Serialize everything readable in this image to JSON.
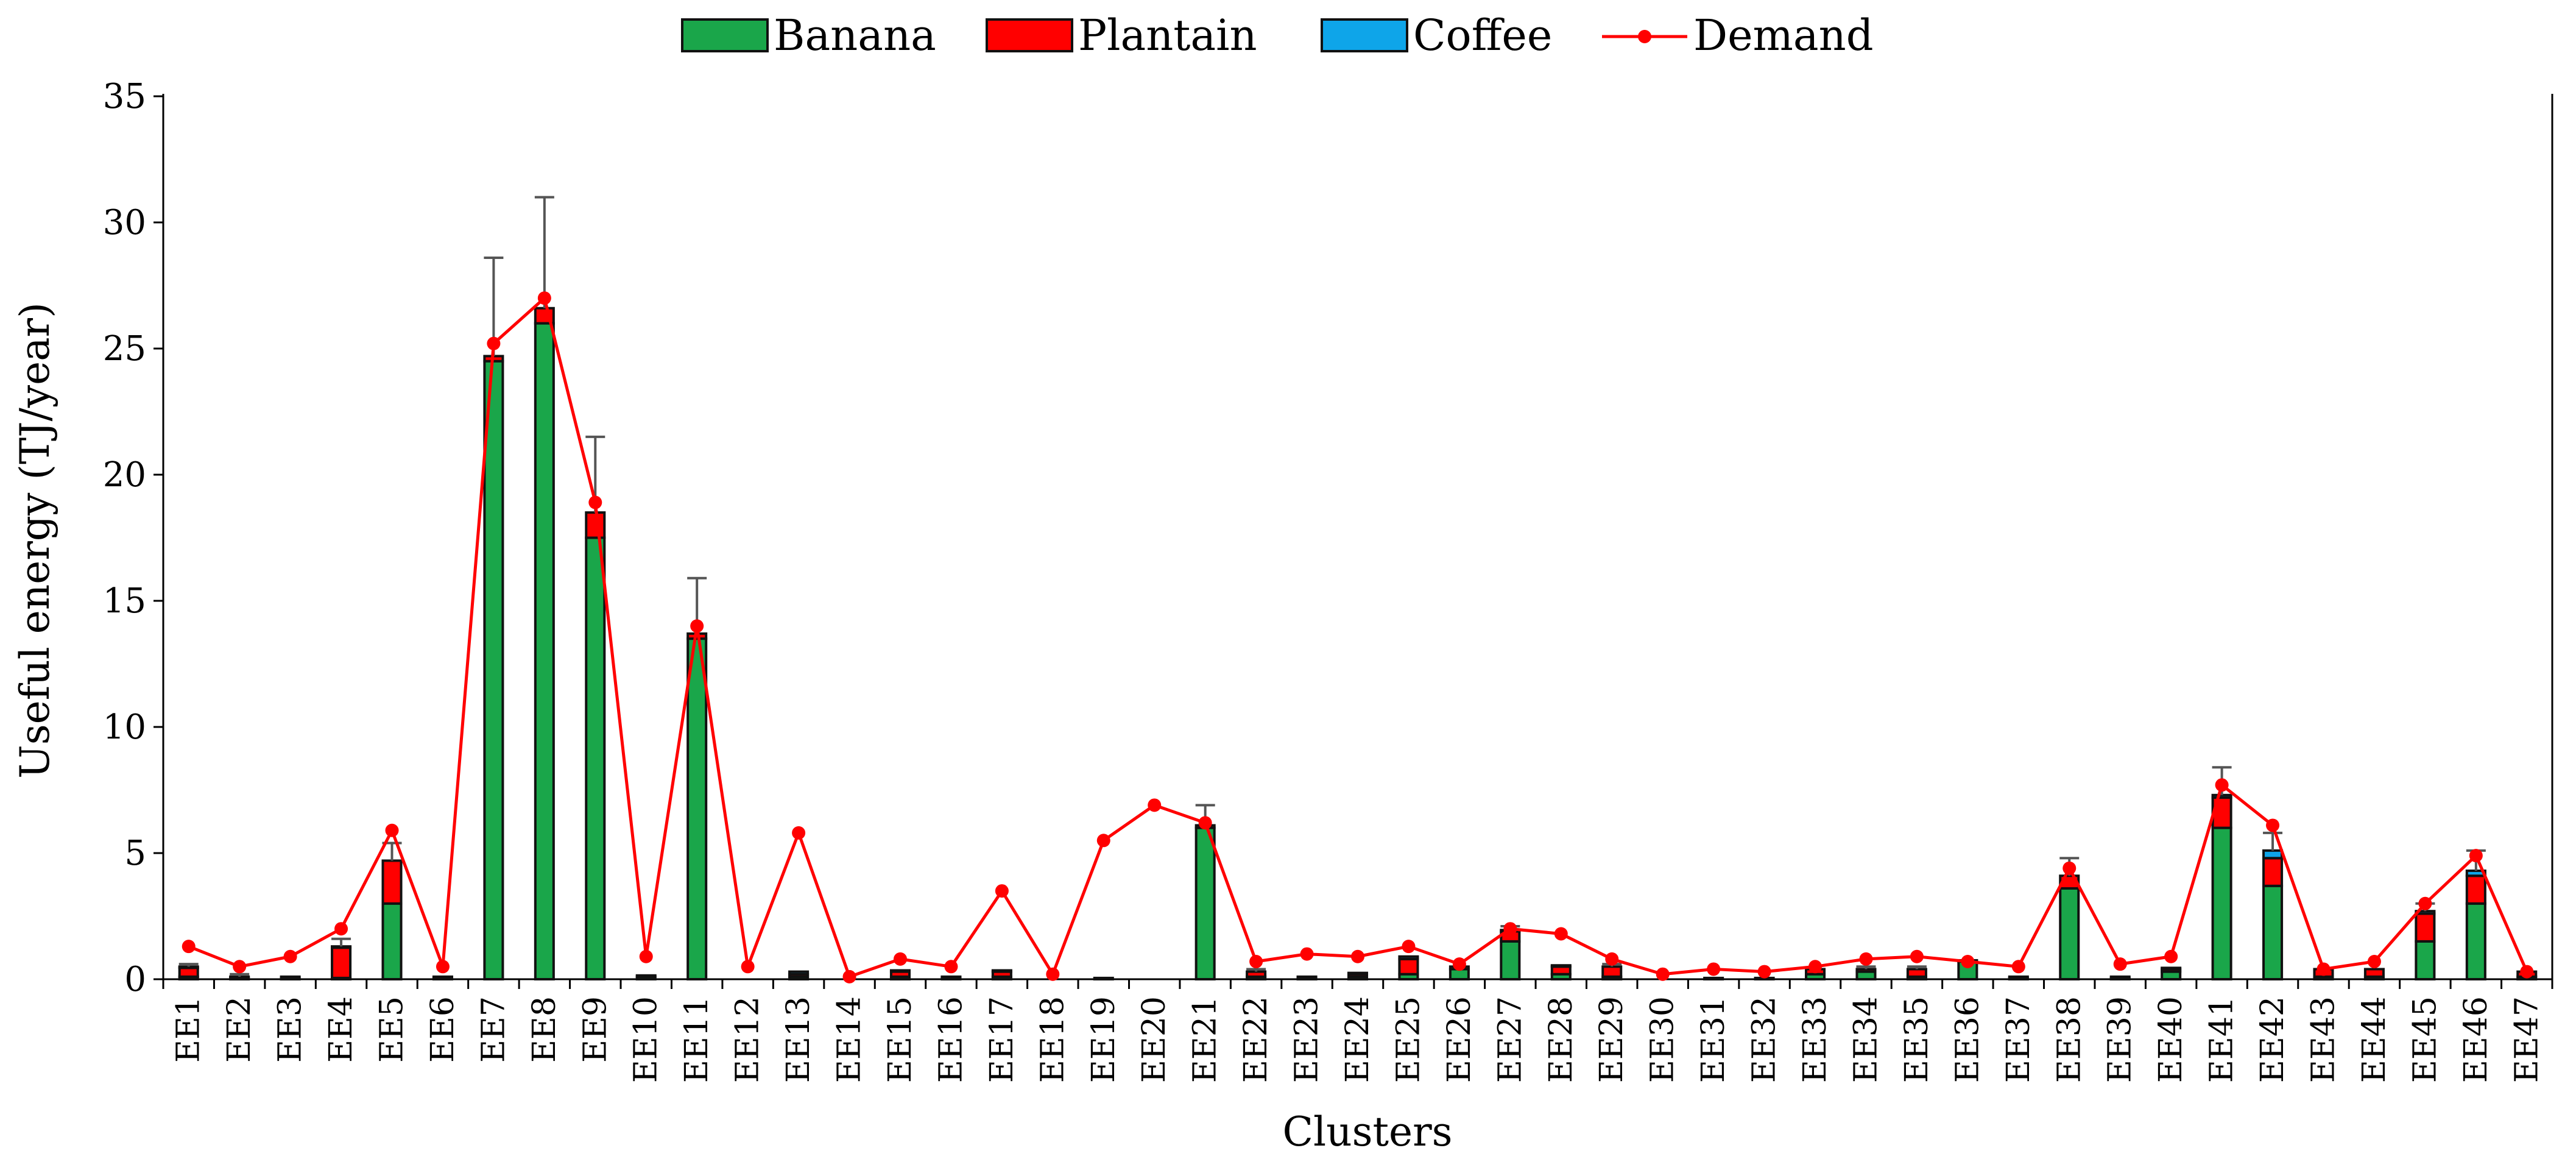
{
  "chart_data": {
    "type": "bar",
    "stacked": true,
    "xlabel": "Clusters",
    "ylabel": "Useful energy (TJ/year)",
    "ylim": [
      0,
      35
    ],
    "yticks": [
      0,
      5,
      10,
      15,
      20,
      25,
      30,
      35
    ],
    "grid": false,
    "legend_position": "top-center",
    "categories": [
      "EE1",
      "EE2",
      "EE3",
      "EE4",
      "EE5",
      "EE6",
      "EE7",
      "EE8",
      "EE9",
      "EE10",
      "EE11",
      "EE12",
      "EE13",
      "EE14",
      "EE15",
      "EE16",
      "EE17",
      "EE18",
      "EE19",
      "EE20",
      "EE21",
      "EE22",
      "EE23",
      "EE24",
      "EE25",
      "EE26",
      "EE27",
      "EE28",
      "EE29",
      "EE30",
      "EE31",
      "EE32",
      "EE33",
      "EE34",
      "EE35",
      "EE36",
      "EE37",
      "EE38",
      "EE39",
      "EE40",
      "EE41",
      "EE42",
      "EE43",
      "EE44",
      "EE45",
      "EE46",
      "EE47"
    ],
    "series": [
      {
        "name": "Banana",
        "type": "bar",
        "color": "#1aa64a",
        "values": [
          0.1,
          0.05,
          0.05,
          0.05,
          3.0,
          0.05,
          24.5,
          26.0,
          17.5,
          0.1,
          13.5,
          0.0,
          0.1,
          0.0,
          0.1,
          0.05,
          0.1,
          0.0,
          0.05,
          0.0,
          6.0,
          0.1,
          0.05,
          0.1,
          0.2,
          0.4,
          1.5,
          0.2,
          0.1,
          0.0,
          0.05,
          0.05,
          0.2,
          0.3,
          0.1,
          0.7,
          0.05,
          3.6,
          0.05,
          0.3,
          6.0,
          3.7,
          0.1,
          0.1,
          1.5,
          3.0,
          0.1
        ]
      },
      {
        "name": "Plantain",
        "type": "bar",
        "color": "#ff0000",
        "values": [
          0.35,
          0.05,
          0.05,
          1.2,
          1.7,
          0.05,
          0.2,
          0.6,
          1.0,
          0.05,
          0.2,
          0.0,
          0.1,
          0.0,
          0.2,
          0.05,
          0.2,
          0.0,
          0.0,
          0.0,
          0.1,
          0.2,
          0.05,
          0.1,
          0.6,
          0.1,
          0.4,
          0.3,
          0.4,
          0.0,
          0.0,
          0.0,
          0.2,
          0.1,
          0.3,
          0.05,
          0.05,
          0.5,
          0.05,
          0.1,
          1.2,
          1.1,
          0.3,
          0.3,
          1.1,
          1.1,
          0.2
        ]
      },
      {
        "name": "Coffee",
        "type": "bar",
        "color": "#0ea5e9",
        "values": [
          0.05,
          0.0,
          0.0,
          0.05,
          0.0,
          0.0,
          0.0,
          0.0,
          0.0,
          0.0,
          0.0,
          0.0,
          0.1,
          0.0,
          0.05,
          0.0,
          0.05,
          0.0,
          0.0,
          0.0,
          0.0,
          0.0,
          0.0,
          0.05,
          0.1,
          0.0,
          0.05,
          0.05,
          0.0,
          0.0,
          0.0,
          0.0,
          0.0,
          0.0,
          0.0,
          0.0,
          0.0,
          0.0,
          0.0,
          0.05,
          0.1,
          0.3,
          0.0,
          0.0,
          0.1,
          0.2,
          0.0
        ]
      },
      {
        "name": "Demand",
        "type": "line",
        "color": "#ff0000",
        "values": [
          1.3,
          0.5,
          0.9,
          2.0,
          5.9,
          0.5,
          25.2,
          27.0,
          18.9,
          0.9,
          14.0,
          0.5,
          5.8,
          0.1,
          0.8,
          0.5,
          3.5,
          0.2,
          5.5,
          6.9,
          6.2,
          0.7,
          1.0,
          0.9,
          1.3,
          0.6,
          2.0,
          1.8,
          0.8,
          0.2,
          0.4,
          0.3,
          0.5,
          0.8,
          0.9,
          0.7,
          0.5,
          4.4,
          0.6,
          0.9,
          7.7,
          6.1,
          0.4,
          0.7,
          3.0,
          4.9,
          0.3
        ]
      }
    ],
    "error_bars_upper": [
      0.6,
      0.2,
      0.15,
      1.6,
      5.4,
      0.1,
      28.6,
      31.0,
      21.5,
      0.2,
      15.9,
      0.0,
      0.35,
      0.0,
      0.4,
      0.1,
      0.4,
      0.0,
      0.1,
      0.0,
      6.9,
      0.4,
      0.15,
      0.3,
      0.9,
      0.5,
      2.1,
      0.6,
      0.6,
      0.0,
      0.1,
      0.1,
      0.4,
      0.5,
      0.5,
      0.8,
      0.1,
      4.8,
      0.1,
      0.5,
      8.4,
      5.8,
      0.45,
      0.45,
      3.0,
      5.1,
      0.35
    ]
  }
}
